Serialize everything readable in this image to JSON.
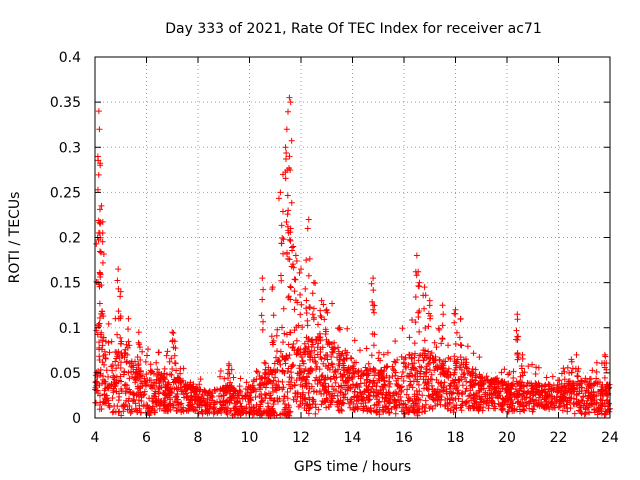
{
  "chart_data": {
    "type": "scatter",
    "title": "Day 333 of 2021, Rate Of TEC Index for receiver ac71",
    "xlabel": "GPS time / hours",
    "ylabel": "ROTI / TECUs",
    "xlim": [
      4,
      24
    ],
    "ylim": [
      0,
      0.4
    ],
    "x_ticks": [
      4,
      6,
      8,
      10,
      12,
      14,
      16,
      18,
      20,
      22,
      24
    ],
    "x_tick_labels": [
      "4",
      "6",
      "8",
      "10",
      "12",
      "14",
      "16",
      "18",
      "20",
      "22",
      "24"
    ],
    "y_ticks": [
      0,
      0.05,
      0.1,
      0.15,
      0.2,
      0.25,
      0.3,
      0.35,
      0.4
    ],
    "y_tick_labels": [
      "0",
      "0.05",
      "0.1",
      "0.15",
      "0.2",
      "0.25",
      "0.3",
      "0.35",
      "0.4"
    ],
    "grid": true,
    "marker": "+",
    "marker_color": "#ff0000",
    "series": [
      {
        "name": "ROTI",
        "envelope": {
          "x": [
            4.0,
            4.1,
            4.2,
            4.3,
            4.5,
            4.8,
            5.0,
            5.2,
            5.5,
            6.0,
            6.5,
            7.0,
            7.5,
            8.0,
            8.5,
            9.0,
            9.5,
            10.0,
            10.5,
            11.0,
            11.2,
            11.4,
            11.6,
            11.8,
            12.0,
            12.3,
            12.6,
            13.0,
            13.5,
            14.0,
            14.5,
            15.0,
            15.5,
            16.0,
            16.5,
            16.8,
            17.0,
            17.5,
            18.0,
            18.3,
            18.6,
            19.0,
            19.5,
            20.0,
            20.5,
            21.0,
            21.5,
            22.0,
            22.5,
            23.0,
            23.5,
            24.0
          ],
          "y_typical": [
            0.03,
            0.06,
            0.06,
            0.05,
            0.045,
            0.04,
            0.04,
            0.045,
            0.035,
            0.03,
            0.03,
            0.03,
            0.025,
            0.02,
            0.018,
            0.02,
            0.02,
            0.02,
            0.025,
            0.035,
            0.04,
            0.045,
            0.05,
            0.05,
            0.05,
            0.05,
            0.05,
            0.055,
            0.045,
            0.04,
            0.035,
            0.03,
            0.035,
            0.04,
            0.04,
            0.045,
            0.045,
            0.04,
            0.04,
            0.04,
            0.035,
            0.03,
            0.03,
            0.025,
            0.025,
            0.025,
            0.025,
            0.025,
            0.025,
            0.025,
            0.025,
            0.02
          ],
          "y_spread": [
            0.04,
            0.07,
            0.07,
            0.06,
            0.05,
            0.05,
            0.06,
            0.05,
            0.04,
            0.04,
            0.035,
            0.03,
            0.025,
            0.02,
            0.02,
            0.025,
            0.025,
            0.025,
            0.04,
            0.05,
            0.06,
            0.08,
            0.08,
            0.06,
            0.05,
            0.06,
            0.06,
            0.06,
            0.05,
            0.04,
            0.035,
            0.035,
            0.04,
            0.05,
            0.05,
            0.05,
            0.045,
            0.04,
            0.045,
            0.04,
            0.035,
            0.03,
            0.025,
            0.025,
            0.025,
            0.025,
            0.02,
            0.02,
            0.025,
            0.03,
            0.03,
            0.025
          ]
        },
        "peaks": [
          {
            "x": 4.15,
            "y": 0.34
          },
          {
            "x": 4.17,
            "y": 0.32
          },
          {
            "x": 4.2,
            "y": 0.28
          },
          {
            "x": 4.25,
            "y": 0.235
          },
          {
            "x": 4.3,
            "y": 0.205
          },
          {
            "x": 4.1,
            "y": 0.2
          },
          {
            "x": 4.2,
            "y": 0.16
          },
          {
            "x": 4.9,
            "y": 0.165
          },
          {
            "x": 5.0,
            "y": 0.14
          },
          {
            "x": 5.3,
            "y": 0.11
          },
          {
            "x": 5.7,
            "y": 0.095
          },
          {
            "x": 7.0,
            "y": 0.095
          },
          {
            "x": 7.1,
            "y": 0.085
          },
          {
            "x": 9.2,
            "y": 0.06
          },
          {
            "x": 10.5,
            "y": 0.155
          },
          {
            "x": 10.9,
            "y": 0.145
          },
          {
            "x": 11.2,
            "y": 0.25
          },
          {
            "x": 11.3,
            "y": 0.27
          },
          {
            "x": 11.4,
            "y": 0.3
          },
          {
            "x": 11.45,
            "y": 0.32
          },
          {
            "x": 11.55,
            "y": 0.355
          },
          {
            "x": 11.6,
            "y": 0.35
          },
          {
            "x": 11.5,
            "y": 0.23
          },
          {
            "x": 11.6,
            "y": 0.21
          },
          {
            "x": 11.7,
            "y": 0.19
          },
          {
            "x": 11.8,
            "y": 0.18
          },
          {
            "x": 12.0,
            "y": 0.165
          },
          {
            "x": 12.2,
            "y": 0.175
          },
          {
            "x": 12.3,
            "y": 0.22
          },
          {
            "x": 12.5,
            "y": 0.15
          },
          {
            "x": 12.8,
            "y": 0.13
          },
          {
            "x": 13.0,
            "y": 0.12
          },
          {
            "x": 13.5,
            "y": 0.1
          },
          {
            "x": 14.8,
            "y": 0.155
          },
          {
            "x": 14.8,
            "y": 0.125
          },
          {
            "x": 16.5,
            "y": 0.18
          },
          {
            "x": 16.6,
            "y": 0.15
          },
          {
            "x": 16.8,
            "y": 0.145
          },
          {
            "x": 17.0,
            "y": 0.13
          },
          {
            "x": 17.5,
            "y": 0.125
          },
          {
            "x": 18.0,
            "y": 0.12
          },
          {
            "x": 18.2,
            "y": 0.11
          },
          {
            "x": 20.4,
            "y": 0.115
          },
          {
            "x": 20.4,
            "y": 0.09
          },
          {
            "x": 20.6,
            "y": 0.07
          },
          {
            "x": 22.7,
            "y": 0.07
          },
          {
            "x": 22.5,
            "y": 0.065
          },
          {
            "x": 23.8,
            "y": 0.07
          }
        ]
      }
    ]
  }
}
